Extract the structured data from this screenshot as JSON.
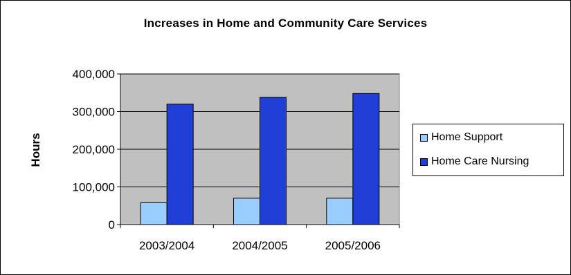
{
  "chart_data": {
    "type": "bar",
    "title": "Increases in Home and Community Care Services",
    "xlabel": "",
    "ylabel": "Hours",
    "categories": [
      "2003/2004",
      "2004/2005",
      "2005/2006"
    ],
    "series": [
      {
        "name": "Home Support",
        "values": [
          58000,
          70000,
          70000
        ],
        "color": "#99ccff"
      },
      {
        "name": "Home Care Nursing",
        "values": [
          320000,
          338000,
          348000
        ],
        "color": "#1f3fd6"
      }
    ],
    "ylim": [
      0,
      400000
    ],
    "yticks": [
      0,
      100000,
      200000,
      300000,
      400000
    ],
    "ytick_labels": [
      "0",
      "100,000",
      "200,000",
      "300,000",
      "400,000"
    ],
    "grid": true,
    "legend": "right",
    "plot_background": "#c0c0c0"
  }
}
